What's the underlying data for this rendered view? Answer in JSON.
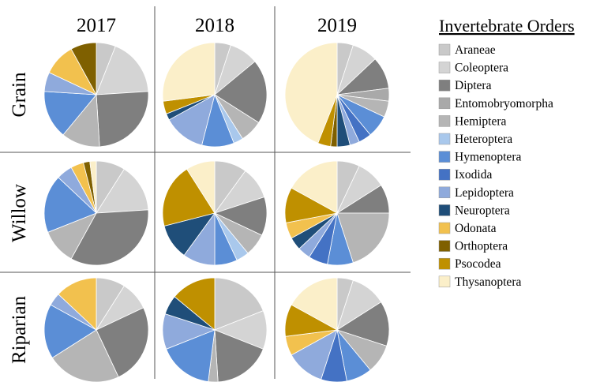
{
  "chart_data": {
    "type": "pie",
    "title": "Invertebrate Orders",
    "columns": [
      "2017",
      "2018",
      "2019"
    ],
    "rows": [
      "Grain",
      "Willow",
      "Riparian"
    ],
    "categories": [
      "Araneae",
      "Coleoptera",
      "Diptera",
      "Entomobryomorpha",
      "Hemiptera",
      "Heteroptera",
      "Hymenoptera",
      "Ixodida",
      "Lepidoptera",
      "Neuroptera",
      "Odonata",
      "Orthoptera",
      "Psocodea",
      "Thysanoptera"
    ],
    "colors": [
      "#c9c9c9",
      "#d4d4d4",
      "#7f7f7f",
      "#a9a9a9",
      "#b5b5b5",
      "#a9c8ec",
      "#5b8ed6",
      "#4472c4",
      "#8faadc",
      "#1f4e79",
      "#f2c14e",
      "#7f6000",
      "#bf9000",
      "#fbefc9"
    ],
    "pies": [
      {
        "values": [
          6,
          18,
          25,
          0,
          12,
          0,
          15,
          0,
          6,
          0,
          10,
          8,
          0,
          0
        ]
      },
      {
        "values": [
          5,
          9,
          20,
          0,
          7,
          3,
          10,
          0,
          13,
          2,
          0,
          0,
          4,
          27
        ]
      },
      {
        "values": [
          5,
          8,
          10,
          4,
          5,
          0,
          7,
          4,
          3,
          4,
          0,
          2,
          4,
          44
        ]
      },
      {
        "values": [
          9,
          15,
          34,
          0,
          11,
          0,
          18,
          0,
          5,
          0,
          4,
          2,
          0,
          2
        ]
      },
      {
        "values": [
          10,
          10,
          12,
          0,
          7,
          4,
          7,
          0,
          10,
          11,
          0,
          0,
          20,
          9
        ]
      },
      {
        "values": [
          7,
          9,
          9,
          0,
          20,
          0,
          8,
          6,
          4,
          4,
          5,
          0,
          11,
          17
        ]
      },
      {
        "values": [
          9,
          9,
          25,
          0,
          23,
          0,
          17,
          0,
          4,
          0,
          13,
          0,
          0,
          0
        ]
      },
      {
        "values": [
          19,
          12,
          18,
          0,
          3,
          0,
          17,
          0,
          11,
          6,
          0,
          0,
          14,
          0
        ]
      },
      {
        "values": [
          5,
          11,
          14,
          0,
          9,
          0,
          8,
          8,
          12,
          0,
          6,
          0,
          10,
          17
        ]
      }
    ]
  }
}
